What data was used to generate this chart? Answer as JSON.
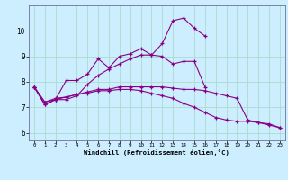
{
  "background_color": "#cceeff",
  "grid_color": "#aaddcc",
  "line_color": "#880088",
  "x_ticks": [
    0,
    1,
    2,
    3,
    4,
    5,
    6,
    7,
    8,
    9,
    10,
    11,
    12,
    13,
    14,
    15,
    16,
    17,
    18,
    19,
    20,
    21,
    22,
    23
  ],
  "y_ticks": [
    6,
    7,
    8,
    9,
    10
  ],
  "ylim": [
    5.7,
    11.0
  ],
  "xlim": [
    -0.5,
    23.5
  ],
  "xlabel": "Windchill (Refroidissement éolien,°C)",
  "series": [
    [
      7.8,
      7.1,
      7.3,
      8.05,
      8.05,
      8.3,
      8.9,
      8.55,
      9.0,
      9.1,
      9.3,
      9.05,
      9.5,
      10.4,
      10.5,
      10.1,
      9.8,
      null,
      null,
      null,
      null,
      null,
      null,
      null
    ],
    [
      7.8,
      7.1,
      7.3,
      7.3,
      7.45,
      7.9,
      8.25,
      8.5,
      8.7,
      8.9,
      9.05,
      9.05,
      9.0,
      8.7,
      8.8,
      8.8,
      7.8,
      null,
      null,
      null,
      null,
      null,
      null,
      null
    ],
    [
      7.8,
      7.2,
      7.3,
      7.4,
      7.5,
      7.55,
      7.65,
      7.65,
      7.7,
      7.7,
      7.65,
      7.55,
      7.45,
      7.35,
      7.15,
      7.0,
      6.8,
      6.6,
      6.5,
      6.45,
      6.45,
      6.4,
      6.3,
      6.2
    ],
    [
      7.8,
      7.2,
      7.35,
      7.4,
      7.5,
      7.6,
      7.7,
      7.7,
      7.8,
      7.8,
      7.8,
      7.8,
      7.8,
      7.75,
      7.7,
      7.7,
      7.65,
      7.55,
      7.45,
      7.35,
      6.5,
      6.4,
      6.35,
      6.2
    ]
  ]
}
